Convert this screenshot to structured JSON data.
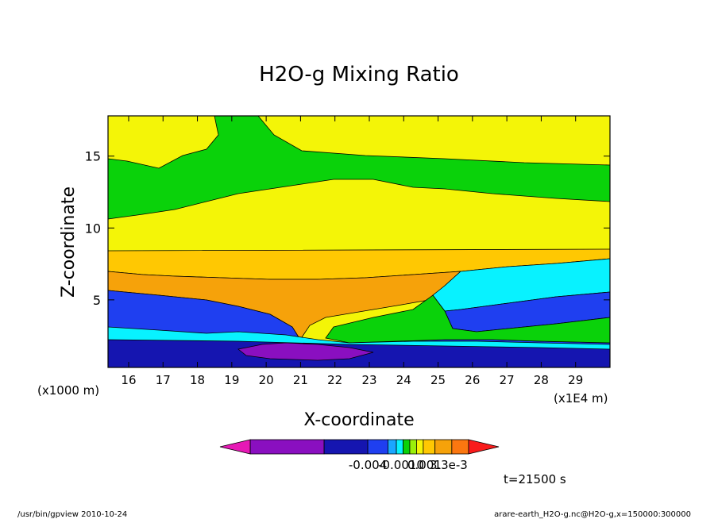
{
  "chart_data": {
    "type": "heatmap",
    "title": "H2O-g Mixing Ratio",
    "xlabel": "X-coordinate",
    "ylabel": "Z-coordinate",
    "x_unit_left": "(x1000 m)",
    "x_unit_right": "(x1E4 m)",
    "xlim": [
      15.4,
      30.0
    ],
    "ylim": [
      0.3,
      17.8
    ],
    "x_ticks": [
      "16",
      "17",
      "18",
      "19",
      "20",
      "21",
      "22",
      "23",
      "24",
      "25",
      "26",
      "27",
      "28",
      "29"
    ],
    "y_ticks": [
      "5",
      "10",
      "15"
    ],
    "grid": false,
    "colorbar": {
      "colors": [
        "#e619b5",
        "#8a0fc0",
        "#1515b0",
        "#1f3ff0",
        "#1aa7ff",
        "#08f2ff",
        "#0ad20a",
        "#9af00a",
        "#f4f507",
        "#ffc802",
        "#f6a20a",
        "#fb7710",
        "#f91b1b"
      ],
      "labels": [
        "-0.004",
        "-0.0010",
        "0.001",
        "3.3e-3"
      ]
    },
    "time_label": "t=21500 s",
    "footer_left": "/usr/bin/gpview   2010-10-24",
    "footer_right": "arare-earth_H2O-g.nc@H2O-g,x=150000:300000",
    "bands": [
      {
        "name": "top-green",
        "color": "#0ad20a"
      },
      {
        "name": "upper-yellow",
        "color": "#f4f507"
      },
      {
        "name": "gold",
        "color": "#ffc802"
      },
      {
        "name": "orange",
        "color": "#f6a20a"
      },
      {
        "name": "blue",
        "color": "#1f3ff0"
      },
      {
        "name": "cyan",
        "color": "#08f2ff"
      },
      {
        "name": "dark-blue",
        "color": "#1515b0"
      },
      {
        "name": "purple",
        "color": "#8a0fc0"
      },
      {
        "name": "top-yellow",
        "color": "#f4f507"
      }
    ]
  }
}
